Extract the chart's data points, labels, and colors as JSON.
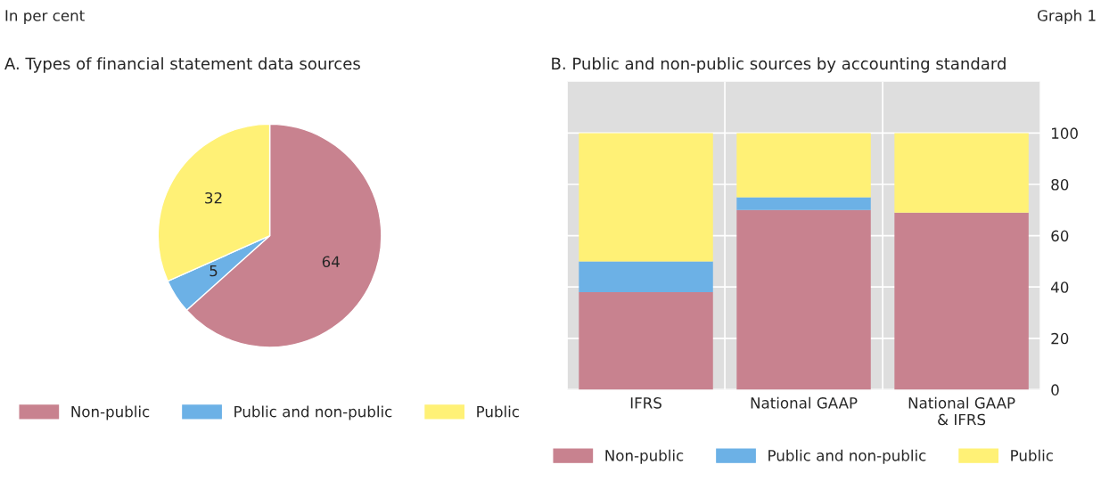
{
  "chart_data": [
    {
      "type": "pie",
      "title": "A. Types of financial statement data sources",
      "annotations": [
        "In per cent",
        "Graph 1"
      ],
      "categories": [
        "Non-public",
        "Public and non-public",
        "Public"
      ],
      "values": [
        64,
        5,
        32
      ],
      "colors": [
        "#c8828f",
        "#6cb1e6",
        "#fff176"
      ],
      "data_labels": true,
      "legend": "bottom"
    },
    {
      "type": "bar",
      "title": "B. Public and non-public sources by accounting standard",
      "stacked": true,
      "categories": [
        "IFRS",
        "National GAAP",
        "National GAAP\n& IFRS"
      ],
      "series": [
        {
          "name": "Non-public",
          "color": "#c8828f",
          "values": [
            38,
            70,
            69
          ]
        },
        {
          "name": "Public and non-public",
          "color": "#6cb1e6",
          "values": [
            12,
            5,
            0
          ]
        },
        {
          "name": "Public",
          "color": "#fff176",
          "values": [
            50,
            25,
            31
          ]
        }
      ],
      "ylim": [
        0,
        120
      ],
      "yticks": [
        0,
        20,
        40,
        60,
        80,
        100
      ],
      "grid": "y",
      "legend": "bottom"
    }
  ]
}
